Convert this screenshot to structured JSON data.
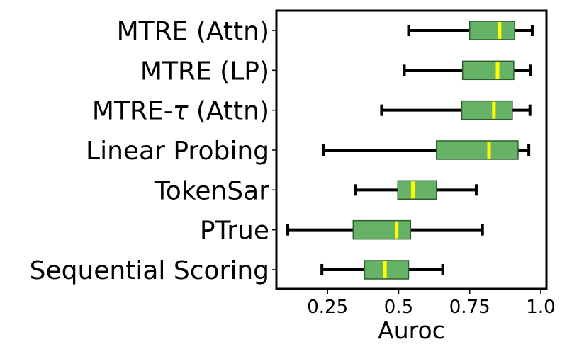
{
  "chart_data": {
    "type": "boxplot",
    "orientation": "horizontal",
    "title": "",
    "xlabel": "Auroc",
    "ylabel": "",
    "xlim": [
      0.07,
      1.02
    ],
    "xticks": [
      0.25,
      0.5,
      0.75,
      1.0
    ],
    "xtick_labels": [
      "0.25",
      "0.5",
      "0.75",
      "1.0"
    ],
    "grid": false,
    "legend": "none",
    "box_color": "#66b266",
    "box_edge_color": "#2e5e2e",
    "median_color": "#ffff00",
    "whisker_color": "#000000",
    "categories": [
      {
        "label": "MTRE (Attn)",
        "label_parts": [
          "MTRE (Attn)"
        ],
        "whislo": 0.535,
        "q1": 0.75,
        "median": 0.855,
        "q3": 0.908,
        "whishi": 0.97
      },
      {
        "label": "MTRE (LP)",
        "label_parts": [
          "MTRE (LP)"
        ],
        "whislo": 0.52,
        "q1": 0.725,
        "median": 0.848,
        "q3": 0.905,
        "whishi": 0.965
      },
      {
        "label": "MTRE-τ (Attn)",
        "label_parts": [
          "MTRE-",
          "τ",
          " (Attn)"
        ],
        "whislo": 0.44,
        "q1": 0.722,
        "median": 0.835,
        "q3": 0.9,
        "whishi": 0.962
      },
      {
        "label": "Linear Probing",
        "label_parts": [
          "Linear Probing"
        ],
        "whislo": 0.237,
        "q1": 0.633,
        "median": 0.818,
        "q3": 0.92,
        "whishi": 0.958
      },
      {
        "label": "TokenSar",
        "label_parts": [
          "TokenSar"
        ],
        "whislo": 0.348,
        "q1": 0.497,
        "median": 0.55,
        "q3": 0.633,
        "whishi": 0.773
      },
      {
        "label": "PTrue",
        "label_parts": [
          "PTrue"
        ],
        "whislo": 0.11,
        "q1": 0.34,
        "median": 0.493,
        "q3": 0.542,
        "whishi": 0.795
      },
      {
        "label": "Sequential Scoring",
        "label_parts": [
          "Sequential Scoring"
        ],
        "whislo": 0.23,
        "q1": 0.38,
        "median": 0.452,
        "q3": 0.535,
        "whishi": 0.655
      }
    ]
  }
}
